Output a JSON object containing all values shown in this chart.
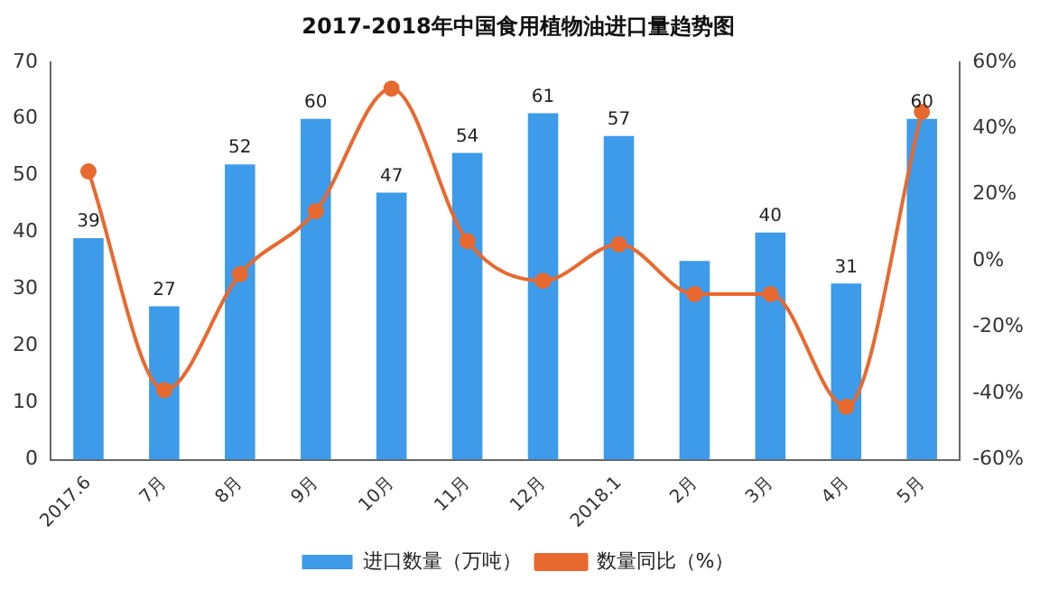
{
  "chart_data": {
    "type": "bar",
    "title": "2017-2018年中国食用植物油进口量趋势图",
    "categories": [
      "2017.6",
      "7月",
      "8月",
      "9月",
      "10月",
      "11月",
      "12月",
      "2018.1",
      "2月",
      "3月",
      "4月",
      "5月"
    ],
    "series": [
      {
        "name": "进口数量（万吨）",
        "color": "#3d9be9",
        "values": [
          39,
          27,
          52,
          60,
          47,
          54,
          61,
          57,
          35,
          40,
          31,
          60
        ],
        "value_labels": [
          "39",
          "27",
          "52",
          "60",
          "47",
          "54",
          "61",
          "57",
          null,
          "40",
          "31",
          "60"
        ]
      },
      {
        "name": "数量同比（%）",
        "type": "line",
        "axis": "y2",
        "color": "#e8692f",
        "values": [
          27,
          -39,
          -4,
          15,
          52,
          6,
          -6,
          5,
          -10,
          -10,
          -44,
          45
        ]
      }
    ],
    "ylim": [
      0,
      70
    ],
    "yticks": [
      0,
      10,
      20,
      30,
      40,
      50,
      60,
      70
    ],
    "y2lim": [
      -60,
      60
    ],
    "y2ticks": [
      {
        "value": -60,
        "label": "-60%"
      },
      {
        "value": -40,
        "label": "-40%"
      },
      {
        "value": -20,
        "label": "-20%"
      },
      {
        "value": 0,
        "label": "0%"
      },
      {
        "value": 20,
        "label": "20%"
      },
      {
        "value": 40,
        "label": "40%"
      },
      {
        "value": 60,
        "label": "60%"
      }
    ],
    "legend": "bottom",
    "marker": "circle",
    "grid": false
  }
}
